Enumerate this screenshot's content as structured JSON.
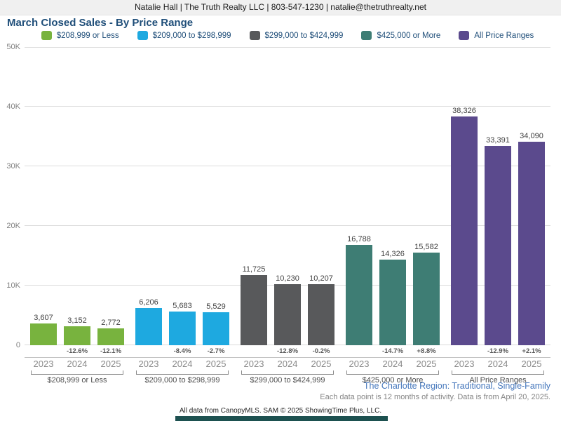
{
  "header": {
    "contact": "Natalie Hall | The Truth Realty LLC | 803-547-1230 | natalie@thetruthrealty.net"
  },
  "title": "March Closed Sales - By Price Range",
  "chart_data": {
    "type": "bar",
    "title": "March Closed Sales - By Price Range",
    "years": [
      "2023",
      "2024",
      "2025"
    ],
    "y_axis": {
      "ticks": [
        "0",
        "10K",
        "20K",
        "30K",
        "40K",
        "50K"
      ],
      "tick_values": [
        0,
        10000,
        20000,
        30000,
        40000,
        50000
      ],
      "max": 50000,
      "grid": true
    },
    "legend_position": "top",
    "groups": [
      {
        "label": "$208,999 or Less",
        "color": "#78B33E",
        "values": [
          3607,
          3152,
          2772
        ],
        "value_labels": [
          "3,607",
          "3,152",
          "2,772"
        ],
        "pct_change": [
          "",
          "-12.6%",
          "-12.1%"
        ]
      },
      {
        "label": "$209,000 to $298,999",
        "color": "#1EA9E0",
        "values": [
          6206,
          5683,
          5529
        ],
        "value_labels": [
          "6,206",
          "5,683",
          "5,529"
        ],
        "pct_change": [
          "",
          "-8.4%",
          "-2.7%"
        ]
      },
      {
        "label": "$299,000 to $424,999",
        "color": "#58595B",
        "values": [
          11725,
          10230,
          10207
        ],
        "value_labels": [
          "11,725",
          "10,230",
          "10,207"
        ],
        "pct_change": [
          "",
          "-12.8%",
          "-0.2%"
        ]
      },
      {
        "label": "$425,000 or More",
        "color": "#3E7D74",
        "values": [
          16788,
          14326,
          15582
        ],
        "value_labels": [
          "16,788",
          "14,326",
          "15,582"
        ],
        "pct_change": [
          "",
          "-14.7%",
          "+8.8%"
        ]
      },
      {
        "label": "All Price Ranges",
        "color": "#5B4A8D",
        "values": [
          38326,
          33391,
          34090
        ],
        "value_labels": [
          "38,326",
          "33,391",
          "34,090"
        ],
        "pct_change": [
          "",
          "-12.9%",
          "+2.1%"
        ]
      }
    ]
  },
  "footnotes": {
    "region": "The Charlotte Region: Traditional, Single-Family",
    "data_note": "Each data point is 12 months of activity. Data is from April 20, 2025.",
    "copyright": "All data from CanopyMLS. SAM © 2025 ShowingTime Plus, LLC."
  },
  "colors": {
    "title_text": "#1F4E79",
    "header_bg": "#f0f0f0",
    "gridline": "#dcdcdc",
    "axis_text": "#808080",
    "brand_bar": "#1D5150",
    "region_text": "#4577BC"
  }
}
